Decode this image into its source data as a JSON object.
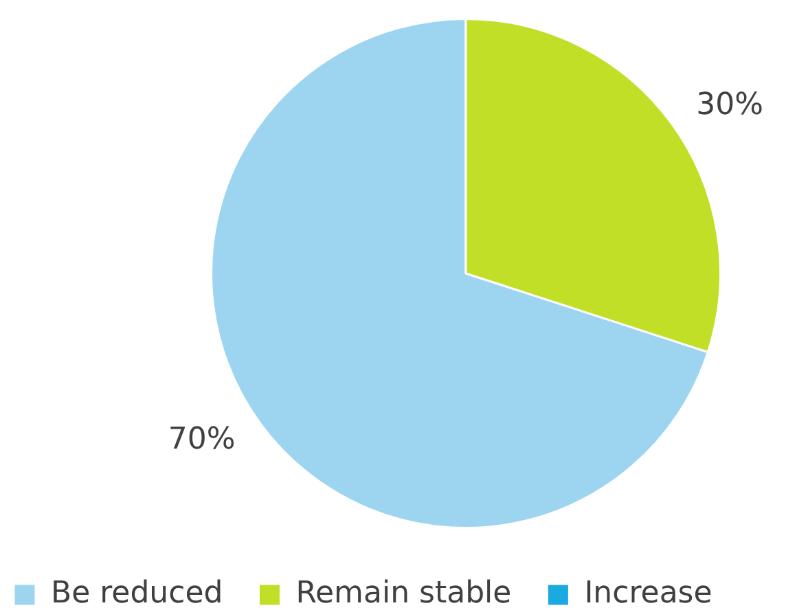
{
  "chart_data": {
    "type": "pie",
    "categories": [
      "Be reduced",
      "Remain stable",
      "Increase"
    ],
    "values": [
      70,
      30,
      0
    ],
    "colors": [
      "#9dd5f1",
      "#c2df28",
      "#1ba9e1"
    ],
    "value_labels": [
      "70%",
      "30%",
      null
    ],
    "legend": "bottom left"
  }
}
